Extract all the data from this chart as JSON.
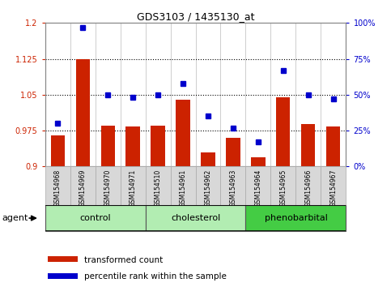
{
  "title": "GDS3103 / 1435130_at",
  "categories": [
    "GSM154968",
    "GSM154969",
    "GSM154970",
    "GSM154971",
    "GSM154510",
    "GSM154961",
    "GSM154962",
    "GSM154963",
    "GSM154964",
    "GSM154965",
    "GSM154966",
    "GSM154967"
  ],
  "red_values": [
    0.965,
    1.125,
    0.985,
    0.983,
    0.985,
    1.04,
    0.93,
    0.96,
    0.92,
    1.045,
    0.988,
    0.983
  ],
  "blue_values": [
    30,
    97,
    50,
    48,
    50,
    58,
    35,
    27,
    17,
    67,
    50,
    47
  ],
  "ylim_left": [
    0.9,
    1.2
  ],
  "ylim_right": [
    0,
    100
  ],
  "yticks_left": [
    0.9,
    0.975,
    1.05,
    1.125,
    1.2
  ],
  "yticks_right": [
    0,
    25,
    50,
    75,
    100
  ],
  "ytick_labels_left": [
    "0.9",
    "0.975",
    "1.05",
    "1.125",
    "1.2"
  ],
  "ytick_labels_right": [
    "0%",
    "25%",
    "50%",
    "75%",
    "100%"
  ],
  "groups": [
    {
      "label": "control",
      "indices": [
        0,
        3
      ],
      "color_light": "#b2edb2",
      "color_dark": "#b2edb2"
    },
    {
      "label": "cholesterol",
      "indices": [
        4,
        7
      ],
      "color_light": "#b2edb2",
      "color_dark": "#b2edb2"
    },
    {
      "label": "phenobarbital",
      "indices": [
        8,
        11
      ],
      "color_light": "#44cc44",
      "color_dark": "#44cc44"
    }
  ],
  "agent_label": "agent",
  "legend_red_label": "transformed count",
  "legend_blue_label": "percentile rank within the sample",
  "red_color": "#cc2200",
  "blue_color": "#0000cc",
  "bar_bottom": 0.9,
  "dotted_line_values": [
    0.975,
    1.05,
    1.125
  ],
  "tick_bg": "#d8d8d8",
  "plot_bg": "#ffffff"
}
